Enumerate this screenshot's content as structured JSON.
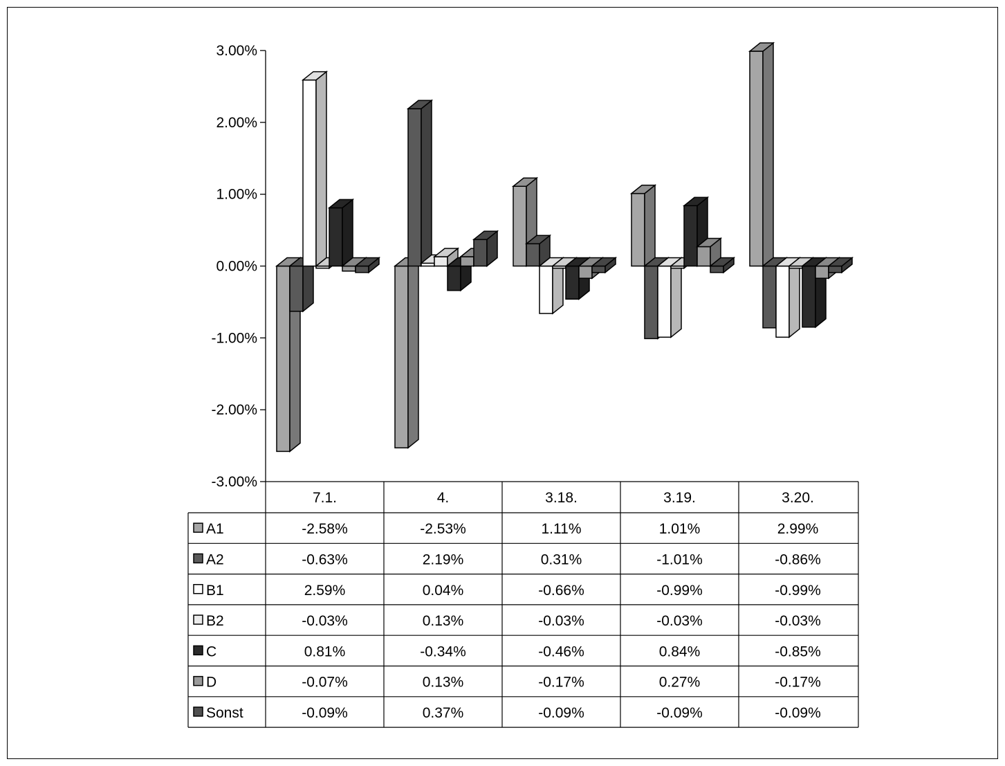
{
  "chart_data": {
    "type": "bar",
    "variant": "3d-clustered-column-with-data-table",
    "categories": [
      "7.1.",
      "4.",
      "3.18.",
      "3.19.",
      "3.20."
    ],
    "ylim": [
      -0.03,
      0.03
    ],
    "y_ticks": [
      {
        "value": 0.03,
        "label": "3.00%"
      },
      {
        "value": 0.02,
        "label": "2.00%"
      },
      {
        "value": 0.01,
        "label": "1.00%"
      },
      {
        "value": 0.0,
        "label": "0.00%"
      },
      {
        "value": -0.01,
        "label": "-1.00%"
      },
      {
        "value": -0.02,
        "label": "-2.00%"
      },
      {
        "value": -0.03,
        "label": "-3.00%"
      }
    ],
    "grid": false,
    "legend": "data-table",
    "series": [
      {
        "name": "A1",
        "color": "#a6a6a6",
        "values": [
          -0.0258,
          -0.0253,
          0.0111,
          0.0101,
          0.0299
        ],
        "labels": [
          "-2.58%",
          "-2.53%",
          "1.11%",
          "1.01%",
          "2.99%"
        ]
      },
      {
        "name": "A2",
        "color": "#5a5a5a",
        "values": [
          -0.0063,
          0.0219,
          0.0031,
          -0.0101,
          -0.0086
        ],
        "labels": [
          "-0.63%",
          "2.19%",
          "0.31%",
          "-1.01%",
          "-0.86%"
        ]
      },
      {
        "name": "B1",
        "color": "#ffffff",
        "values": [
          0.0259,
          0.0004,
          -0.0066,
          -0.0099,
          -0.0099
        ],
        "labels": [
          "2.59%",
          "0.04%",
          "-0.66%",
          "-0.99%",
          "-0.99%"
        ]
      },
      {
        "name": "B2",
        "color": "#ebebeb",
        "values": [
          -0.0003,
          0.0013,
          -0.0003,
          -0.0003,
          -0.0003
        ],
        "labels": [
          "-0.03%",
          "0.13%",
          "-0.03%",
          "-0.03%",
          "-0.03%"
        ]
      },
      {
        "name": "C",
        "color": "#2b2b2b",
        "values": [
          0.0081,
          -0.0034,
          -0.0046,
          0.0084,
          -0.0085
        ],
        "labels": [
          "0.81%",
          "-0.34%",
          "-0.46%",
          "0.84%",
          "-0.85%"
        ]
      },
      {
        "name": "D",
        "color": "#9b9b9b",
        "values": [
          -0.0007,
          0.0013,
          -0.0017,
          0.0027,
          -0.0017
        ],
        "labels": [
          "-0.07%",
          "0.13%",
          "-0.17%",
          "0.27%",
          "-0.17%"
        ]
      },
      {
        "name": "Sonst",
        "color": "#505050",
        "values": [
          -0.0009,
          0.0037,
          -0.0009,
          -0.0009,
          -0.0009
        ],
        "labels": [
          "-0.09%",
          "0.37%",
          "-0.09%",
          "-0.09%",
          "-0.09%"
        ]
      }
    ]
  }
}
